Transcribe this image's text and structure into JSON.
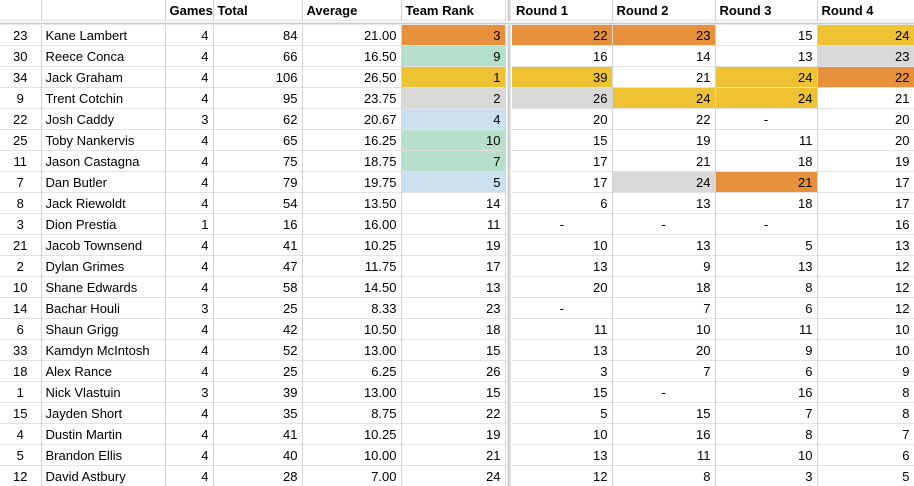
{
  "app": {
    "type": "spreadsheet",
    "description": "Player scores table with frozen header row and frozen left columns"
  },
  "colors": {
    "orange": "#E8913C",
    "yellow": "#EFC233",
    "gray": "#D9D9D9",
    "green": "#B7E0CC",
    "blue": "#CDE0F0",
    "gridline_vertical": "#D2D2D2",
    "gridline_horizontal": "#E3E3E3",
    "frozen_divider": "#CFCFCF"
  },
  "table": {
    "header_labels": [
      "",
      "",
      "Games",
      "Total",
      "Average",
      "Team Rank",
      "Round 1",
      "Round 2",
      "Round 3",
      "Round 4"
    ],
    "rows": [
      {
        "num": "23",
        "name": "Kane Lambert",
        "games": "4",
        "total": "84",
        "average": "21.00",
        "rank": "3",
        "rank_bg": "orange",
        "rounds": [
          {
            "v": "22",
            "bg": "orange"
          },
          {
            "v": "23",
            "bg": "orange"
          },
          {
            "v": "15",
            "bg": null
          },
          {
            "v": "24",
            "bg": "yellow"
          }
        ]
      },
      {
        "num": "30",
        "name": "Reece Conca",
        "games": "4",
        "total": "66",
        "average": "16.50",
        "rank": "9",
        "rank_bg": "green",
        "rounds": [
          {
            "v": "16",
            "bg": null
          },
          {
            "v": "14",
            "bg": null
          },
          {
            "v": "13",
            "bg": null
          },
          {
            "v": "23",
            "bg": "gray"
          }
        ]
      },
      {
        "num": "34",
        "name": "Jack Graham",
        "games": "4",
        "total": "106",
        "average": "26.50",
        "rank": "1",
        "rank_bg": "yellow",
        "rounds": [
          {
            "v": "39",
            "bg": "yellow"
          },
          {
            "v": "21",
            "bg": null
          },
          {
            "v": "24",
            "bg": "yellow"
          },
          {
            "v": "22",
            "bg": "orange"
          }
        ]
      },
      {
        "num": "9",
        "name": "Trent Cotchin",
        "games": "4",
        "total": "95",
        "average": "23.75",
        "rank": "2",
        "rank_bg": "gray",
        "rounds": [
          {
            "v": "26",
            "bg": "gray"
          },
          {
            "v": "24",
            "bg": "yellow"
          },
          {
            "v": "24",
            "bg": "yellow"
          },
          {
            "v": "21",
            "bg": null
          }
        ]
      },
      {
        "num": "22",
        "name": "Josh Caddy",
        "games": "3",
        "total": "62",
        "average": "20.67",
        "rank": "4",
        "rank_bg": "blue",
        "rounds": [
          {
            "v": "20",
            "bg": null
          },
          {
            "v": "22",
            "bg": null
          },
          {
            "v": "-",
            "bg": null
          },
          {
            "v": "20",
            "bg": null
          }
        ]
      },
      {
        "num": "25",
        "name": "Toby Nankervis",
        "games": "4",
        "total": "65",
        "average": "16.25",
        "rank": "10",
        "rank_bg": "green",
        "rounds": [
          {
            "v": "15",
            "bg": null
          },
          {
            "v": "19",
            "bg": null
          },
          {
            "v": "11",
            "bg": null
          },
          {
            "v": "20",
            "bg": null
          }
        ]
      },
      {
        "num": "11",
        "name": "Jason Castagna",
        "games": "4",
        "total": "75",
        "average": "18.75",
        "rank": "7",
        "rank_bg": "green",
        "rounds": [
          {
            "v": "17",
            "bg": null
          },
          {
            "v": "21",
            "bg": null
          },
          {
            "v": "18",
            "bg": null
          },
          {
            "v": "19",
            "bg": null
          }
        ]
      },
      {
        "num": "7",
        "name": "Dan Butler",
        "games": "4",
        "total": "79",
        "average": "19.75",
        "rank": "5",
        "rank_bg": "blue",
        "rounds": [
          {
            "v": "17",
            "bg": null
          },
          {
            "v": "24",
            "bg": "gray"
          },
          {
            "v": "21",
            "bg": "orange"
          },
          {
            "v": "17",
            "bg": null
          }
        ]
      },
      {
        "num": "8",
        "name": "Jack Riewoldt",
        "games": "4",
        "total": "54",
        "average": "13.50",
        "rank": "14",
        "rank_bg": null,
        "rounds": [
          {
            "v": "6",
            "bg": null
          },
          {
            "v": "13",
            "bg": null
          },
          {
            "v": "18",
            "bg": null
          },
          {
            "v": "17",
            "bg": null
          }
        ]
      },
      {
        "num": "3",
        "name": "Dion Prestia",
        "games": "1",
        "total": "16",
        "average": "16.00",
        "rank": "11",
        "rank_bg": null,
        "rounds": [
          {
            "v": "-",
            "bg": null
          },
          {
            "v": "-",
            "bg": null
          },
          {
            "v": "-",
            "bg": null
          },
          {
            "v": "16",
            "bg": null
          }
        ]
      },
      {
        "num": "21",
        "name": "Jacob Townsend",
        "games": "4",
        "total": "41",
        "average": "10.25",
        "rank": "19",
        "rank_bg": null,
        "rounds": [
          {
            "v": "10",
            "bg": null
          },
          {
            "v": "13",
            "bg": null
          },
          {
            "v": "5",
            "bg": null
          },
          {
            "v": "13",
            "bg": null
          }
        ]
      },
      {
        "num": "2",
        "name": "Dylan Grimes",
        "games": "4",
        "total": "47",
        "average": "11.75",
        "rank": "17",
        "rank_bg": null,
        "rounds": [
          {
            "v": "13",
            "bg": null
          },
          {
            "v": "9",
            "bg": null
          },
          {
            "v": "13",
            "bg": null
          },
          {
            "v": "12",
            "bg": null
          }
        ]
      },
      {
        "num": "10",
        "name": "Shane Edwards",
        "games": "4",
        "total": "58",
        "average": "14.50",
        "rank": "13",
        "rank_bg": null,
        "rounds": [
          {
            "v": "20",
            "bg": null
          },
          {
            "v": "18",
            "bg": null
          },
          {
            "v": "8",
            "bg": null
          },
          {
            "v": "12",
            "bg": null
          }
        ]
      },
      {
        "num": "14",
        "name": "Bachar Houli",
        "games": "3",
        "total": "25",
        "average": "8.33",
        "rank": "23",
        "rank_bg": null,
        "rounds": [
          {
            "v": "-",
            "bg": null
          },
          {
            "v": "7",
            "bg": null
          },
          {
            "v": "6",
            "bg": null
          },
          {
            "v": "12",
            "bg": null
          }
        ]
      },
      {
        "num": "6",
        "name": "Shaun Grigg",
        "games": "4",
        "total": "42",
        "average": "10.50",
        "rank": "18",
        "rank_bg": null,
        "rounds": [
          {
            "v": "11",
            "bg": null
          },
          {
            "v": "10",
            "bg": null
          },
          {
            "v": "11",
            "bg": null
          },
          {
            "v": "10",
            "bg": null
          }
        ]
      },
      {
        "num": "33",
        "name": "Kamdyn McIntosh",
        "games": "4",
        "total": "52",
        "average": "13.00",
        "rank": "15",
        "rank_bg": null,
        "rounds": [
          {
            "v": "13",
            "bg": null
          },
          {
            "v": "20",
            "bg": null
          },
          {
            "v": "9",
            "bg": null
          },
          {
            "v": "10",
            "bg": null
          }
        ]
      },
      {
        "num": "18",
        "name": "Alex Rance",
        "games": "4",
        "total": "25",
        "average": "6.25",
        "rank": "26",
        "rank_bg": null,
        "rounds": [
          {
            "v": "3",
            "bg": null
          },
          {
            "v": "7",
            "bg": null
          },
          {
            "v": "6",
            "bg": null
          },
          {
            "v": "9",
            "bg": null
          }
        ]
      },
      {
        "num": "1",
        "name": "Nick Vlastuin",
        "games": "3",
        "total": "39",
        "average": "13.00",
        "rank": "15",
        "rank_bg": null,
        "rounds": [
          {
            "v": "15",
            "bg": null
          },
          {
            "v": "-",
            "bg": null
          },
          {
            "v": "16",
            "bg": null
          },
          {
            "v": "8",
            "bg": null
          }
        ]
      },
      {
        "num": "15",
        "name": "Jayden Short",
        "games": "4",
        "total": "35",
        "average": "8.75",
        "rank": "22",
        "rank_bg": null,
        "rounds": [
          {
            "v": "5",
            "bg": null
          },
          {
            "v": "15",
            "bg": null
          },
          {
            "v": "7",
            "bg": null
          },
          {
            "v": "8",
            "bg": null
          }
        ]
      },
      {
        "num": "4",
        "name": "Dustin Martin",
        "games": "4",
        "total": "41",
        "average": "10.25",
        "rank": "19",
        "rank_bg": null,
        "rounds": [
          {
            "v": "10",
            "bg": null
          },
          {
            "v": "16",
            "bg": null
          },
          {
            "v": "8",
            "bg": null
          },
          {
            "v": "7",
            "bg": null
          }
        ]
      },
      {
        "num": "5",
        "name": "Brandon Ellis",
        "games": "4",
        "total": "40",
        "average": "10.00",
        "rank": "21",
        "rank_bg": null,
        "rounds": [
          {
            "v": "13",
            "bg": null
          },
          {
            "v": "11",
            "bg": null
          },
          {
            "v": "10",
            "bg": null
          },
          {
            "v": "6",
            "bg": null
          }
        ]
      },
      {
        "num": "12",
        "name": "David Astbury",
        "games": "4",
        "total": "28",
        "average": "7.00",
        "rank": "24",
        "rank_bg": null,
        "rounds": [
          {
            "v": "12",
            "bg": null
          },
          {
            "v": "8",
            "bg": null
          },
          {
            "v": "3",
            "bg": null
          },
          {
            "v": "5",
            "bg": null
          }
        ]
      }
    ]
  }
}
